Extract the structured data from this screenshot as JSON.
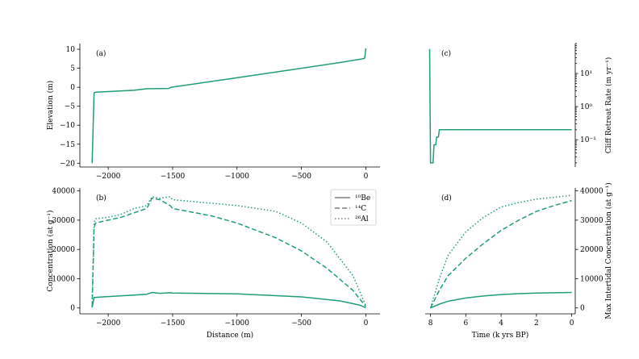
{
  "colors": {
    "series": "#1f9e77",
    "axis": "#000000"
  },
  "chart_data": [
    {
      "type": "line",
      "panel_label": "(a)",
      "ylabel": "Elevation (m)",
      "xlim": [
        -2220,
        110
      ],
      "ylim": [
        -21,
        11.5
      ],
      "xticks": [
        -2000,
        -1500,
        -1000,
        -500,
        0
      ],
      "xtick_labels": [
        "−2000",
        "−1500",
        "−1000",
        "−500",
        "0"
      ],
      "yticks": [
        10,
        5,
        0,
        -5,
        -10,
        -15,
        -20
      ],
      "ytick_labels": [
        "10",
        "5",
        "0",
        "−5",
        "−10",
        "−15",
        "−20"
      ],
      "series": [
        {
          "values": [
            [
              -2125,
              -20
            ],
            [
              -2110,
              -1.5
            ],
            [
              -2100,
              -1.3
            ],
            [
              -1800,
              -0.8
            ],
            [
              -1700,
              -0.4
            ],
            [
              -1530,
              -0.3
            ],
            [
              -1510,
              0.0
            ],
            [
              -1000,
              2.5
            ],
            [
              -500,
              5.0
            ],
            [
              -200,
              6.5
            ],
            [
              -40,
              7.4
            ],
            [
              -10,
              7.6
            ],
            [
              -5,
              8.6
            ],
            [
              0,
              10.2
            ]
          ]
        }
      ]
    },
    {
      "type": "line",
      "panel_label": "(b)",
      "xlabel": "Distance (m)",
      "ylabel": "Concentration (at g⁻¹)",
      "xlim": [
        -2220,
        110
      ],
      "ylim": [
        -2000,
        41000
      ],
      "xticks": [
        -2000,
        -1500,
        -1000,
        -500,
        0
      ],
      "xtick_labels": [
        "−2000",
        "−1500",
        "−1000",
        "−500",
        "0"
      ],
      "yticks": [
        0,
        10000,
        20000,
        30000,
        40000
      ],
      "ytick_labels": [
        "0",
        "10000",
        "20000",
        "30000",
        "40000"
      ],
      "legend": {
        "position": "upper right",
        "entries": [
          {
            "label": "¹⁰Be",
            "style": "solid"
          },
          {
            "label": "¹⁴C",
            "style": "dashed"
          },
          {
            "label": "²⁶Al",
            "style": "dotted"
          }
        ]
      },
      "series": [
        {
          "name": "¹⁰Be",
          "style": "solid",
          "values": [
            [
              -2125,
              200
            ],
            [
              -2110,
              3600
            ],
            [
              -2000,
              3900
            ],
            [
              -1800,
              4400
            ],
            [
              -1700,
              4700
            ],
            [
              -1660,
              5300
            ],
            [
              -1600,
              5000
            ],
            [
              -1520,
              5200
            ],
            [
              -1500,
              5100
            ],
            [
              -1000,
              4800
            ],
            [
              -500,
              3800
            ],
            [
              -200,
              2400
            ],
            [
              -50,
              1000
            ],
            [
              0,
              100
            ]
          ]
        },
        {
          "name": "¹⁴C",
          "style": "dashed",
          "values": [
            [
              -2125,
              500
            ],
            [
              -2110,
              27000
            ],
            [
              -2100,
              29000
            ],
            [
              -2000,
              30000
            ],
            [
              -1900,
              31000
            ],
            [
              -1800,
              32500
            ],
            [
              -1700,
              34000
            ],
            [
              -1660,
              37500
            ],
            [
              -1600,
              37000
            ],
            [
              -1520,
              35000
            ],
            [
              -1500,
              34000
            ],
            [
              -1200,
              31500
            ],
            [
              -1000,
              29000
            ],
            [
              -700,
              24000
            ],
            [
              -500,
              19500
            ],
            [
              -300,
              13500
            ],
            [
              -100,
              6000
            ],
            [
              0,
              500
            ]
          ]
        },
        {
          "name": "²⁶Al",
          "style": "dotted",
          "values": [
            [
              -2125,
              800
            ],
            [
              -2110,
              29000
            ],
            [
              -2100,
              30500
            ],
            [
              -2000,
              31000
            ],
            [
              -1900,
              32000
            ],
            [
              -1800,
              34000
            ],
            [
              -1700,
              35000
            ],
            [
              -1660,
              38000
            ],
            [
              -1600,
              37500
            ],
            [
              -1520,
              38000
            ],
            [
              -1500,
              37000
            ],
            [
              -1200,
              35800
            ],
            [
              -1000,
              35000
            ],
            [
              -700,
              33000
            ],
            [
              -500,
              29000
            ],
            [
              -300,
              22500
            ],
            [
              -100,
              11000
            ],
            [
              0,
              800
            ]
          ]
        }
      ]
    },
    {
      "type": "line",
      "panel_label": "(c)",
      "ylabel": "Cliff Retreat Rate (m yr⁻¹)",
      "ylog": true,
      "xlim": [
        8.3,
        -0.2
      ],
      "ylim": [
        0.015,
        80
      ],
      "xticks": [
        8,
        6,
        4,
        2,
        0
      ],
      "yticks": [
        10,
        1,
        0.1
      ],
      "ytick_labels": [
        "10¹",
        "10⁰",
        "10⁻¹"
      ],
      "series": [
        {
          "values": [
            [
              8.05,
              55
            ],
            [
              8.0,
              0.02
            ],
            [
              7.85,
              0.02
            ],
            [
              7.8,
              0.07
            ],
            [
              7.7,
              0.07
            ],
            [
              7.65,
              0.12
            ],
            [
              7.55,
              0.12
            ],
            [
              7.5,
              0.2
            ],
            [
              5.0,
              0.2
            ],
            [
              3.0,
              0.2
            ],
            [
              1.0,
              0.2
            ],
            [
              0,
              0.2
            ]
          ]
        }
      ]
    },
    {
      "type": "line",
      "panel_label": "(d)",
      "xlabel": "Time (k yrs BP)",
      "ylabel": "Max Intertidal Concentration (at g⁻¹)",
      "xlim": [
        8.3,
        -0.2
      ],
      "ylim": [
        -2000,
        41000
      ],
      "xticks": [
        8,
        6,
        4,
        2,
        0
      ],
      "yticks": [
        0,
        10000,
        20000,
        30000,
        40000
      ],
      "ytick_labels": [
        "0",
        "10000",
        "20000",
        "30000",
        "40000"
      ],
      "series": [
        {
          "name": "¹⁰Be",
          "style": "solid",
          "values": [
            [
              8,
              0
            ],
            [
              7.5,
              1300
            ],
            [
              7,
              2300
            ],
            [
              6,
              3400
            ],
            [
              5,
              4100
            ],
            [
              4,
              4600
            ],
            [
              3,
              4900
            ],
            [
              2,
              5100
            ],
            [
              1,
              5200
            ],
            [
              0,
              5300
            ]
          ]
        },
        {
          "name": "¹⁴C",
          "style": "dashed",
          "values": [
            [
              8,
              0
            ],
            [
              7.5,
              6000
            ],
            [
              7,
              11000
            ],
            [
              6,
              17000
            ],
            [
              5,
              22000
            ],
            [
              4,
              26500
            ],
            [
              3,
              30000
            ],
            [
              2,
              33000
            ],
            [
              1,
              35000
            ],
            [
              0,
              36700
            ]
          ]
        },
        {
          "name": "²⁶Al",
          "style": "dotted",
          "values": [
            [
              8,
              0
            ],
            [
              7.5,
              10000
            ],
            [
              7,
              18000
            ],
            [
              6,
              26000
            ],
            [
              5,
              31000
            ],
            [
              4,
              34500
            ],
            [
              3,
              36000
            ],
            [
              2,
              37200
            ],
            [
              1,
              37800
            ],
            [
              0,
              38500
            ]
          ]
        }
      ]
    }
  ]
}
